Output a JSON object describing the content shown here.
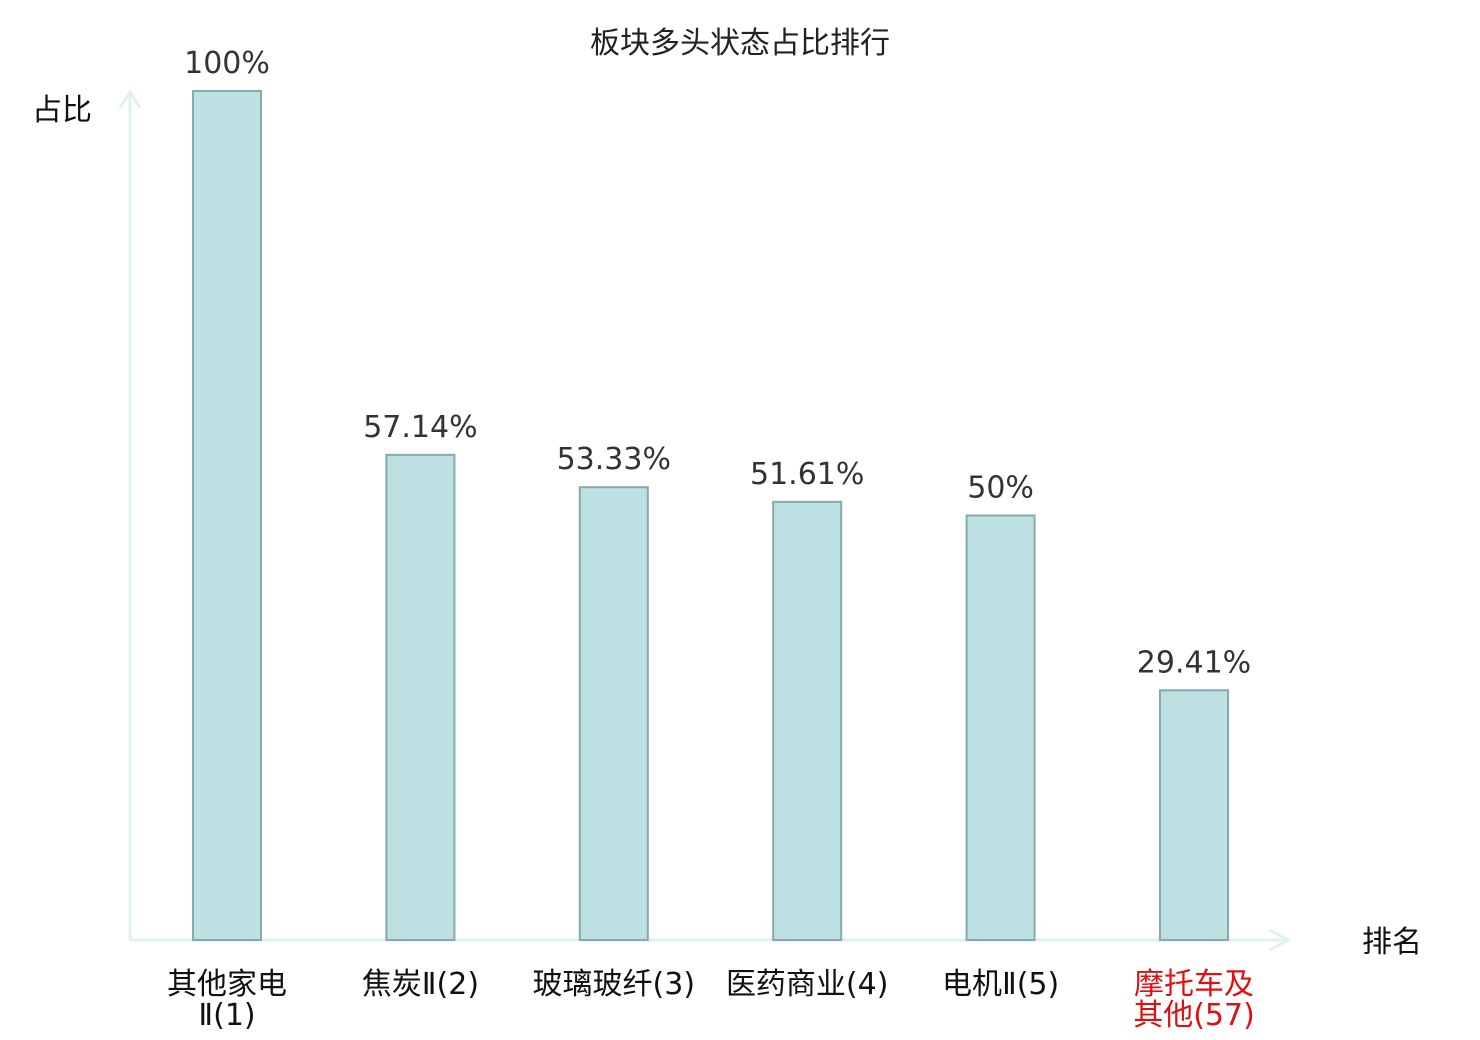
{
  "chart_data": {
    "type": "bar",
    "title": "板块多头状态占比排行",
    "ylabel": "占比",
    "xlabel": "排名",
    "ylim": [
      0,
      100
    ],
    "unit": "%",
    "categories": [
      {
        "name": "其他家电Ⅱ",
        "rank": "(1)",
        "line1": "其他家电",
        "line2": "Ⅱ(1)",
        "highlight": false
      },
      {
        "name": "焦炭Ⅱ",
        "rank": "(2)",
        "line1": "焦炭Ⅱ(2)",
        "line2": "",
        "highlight": false
      },
      {
        "name": "玻璃玻纤",
        "rank": "(3)",
        "line1": "玻璃玻纤(3)",
        "line2": "",
        "highlight": false
      },
      {
        "name": "医药商业",
        "rank": "(4)",
        "line1": "医药商业(4)",
        "line2": "",
        "highlight": false
      },
      {
        "name": "电机Ⅱ",
        "rank": "(5)",
        "line1": "电机Ⅱ(5)",
        "line2": "",
        "highlight": false
      },
      {
        "name": "摩托车及其他",
        "rank": "(57)",
        "line1": "摩托车及",
        "line2": "其他(57)",
        "highlight": true
      }
    ],
    "values": [
      100,
      57.14,
      53.33,
      51.61,
      50,
      29.41
    ],
    "value_labels": [
      "100%",
      "57.14%",
      "53.33%",
      "51.61%",
      "50%",
      "29.41%"
    ],
    "colors": {
      "bar_fill": "#bde0e3",
      "bar_stroke": "#86a9ad",
      "axis": "#e0f2ef",
      "highlight": "#e01010",
      "normal_label": "#111111"
    },
    "grid": false,
    "legend": "none"
  }
}
